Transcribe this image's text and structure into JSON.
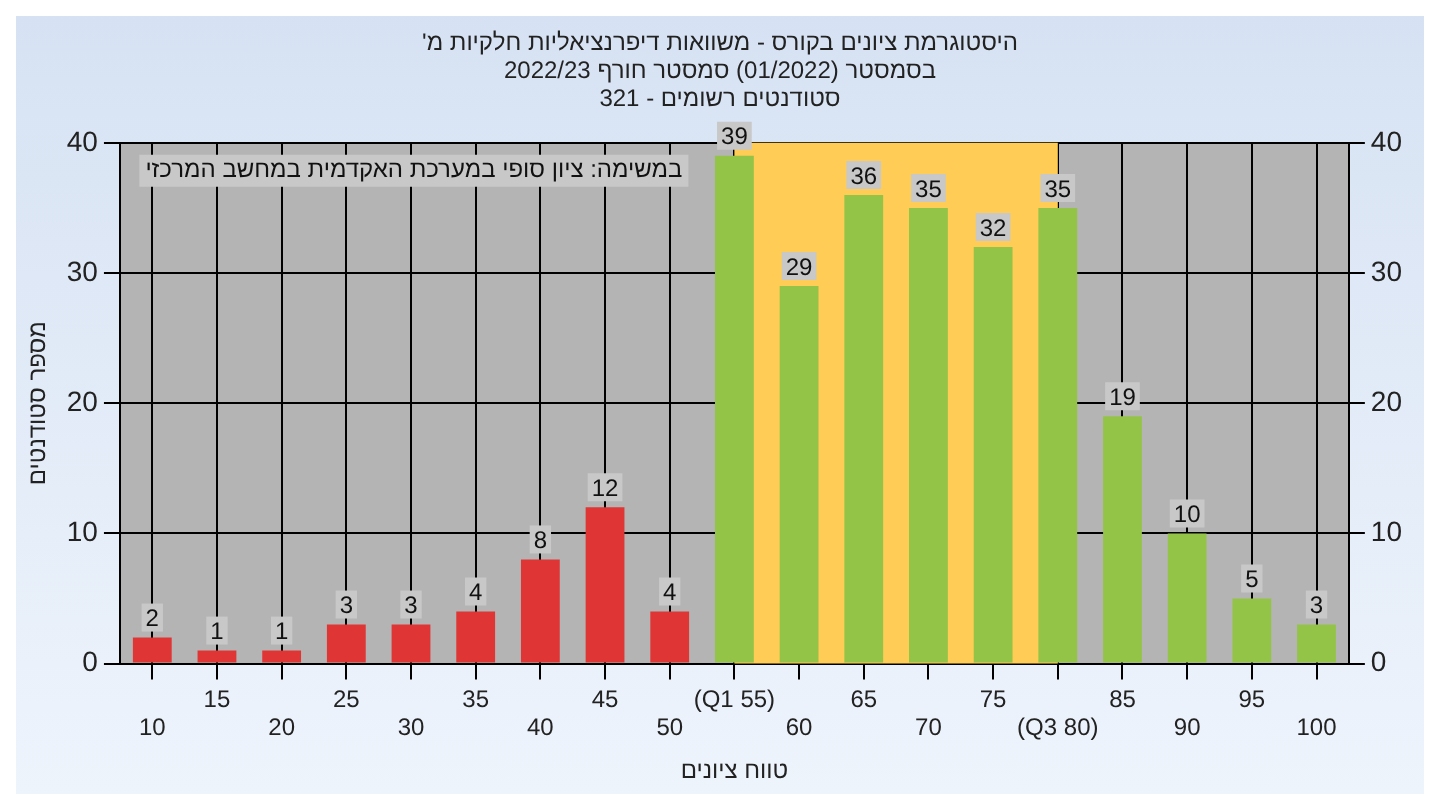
{
  "chart_data": {
    "type": "bar",
    "title": "היסטוגרמת ציונים בקורס - משוואות דיפרנציאליות חלקיות מ'",
    "subtitle": "בסמסטר (01/2022) סמסטר חורף 2022/23\nסטודנטים רשומים - 321",
    "xlabel": "טווח ציונים",
    "ylabel": "מספר סטודנטים",
    "categories": [
      "10",
      "15",
      "20",
      "25",
      "30",
      "35",
      "40",
      "45",
      "50",
      "(Q1 55)",
      "60",
      "65",
      "70",
      "75",
      "(Q3 80)",
      "85",
      "90",
      "95",
      "100"
    ],
    "values": [
      2,
      1,
      1,
      3,
      3,
      4,
      8,
      12,
      4,
      39,
      29,
      36,
      35,
      32,
      35,
      19,
      10,
      5,
      3
    ],
    "colors": [
      "#e03535",
      "#e03535",
      "#e03535",
      "#e03535",
      "#e03535",
      "#e03535",
      "#e03535",
      "#e03535",
      "#e03535",
      "#94c447",
      "#94c447",
      "#94c447",
      "#94c447",
      "#94c447",
      "#94c447",
      "#94c447",
      "#94c447",
      "#94c447",
      "#94c447"
    ],
    "ylim": [
      0,
      40
    ],
    "yticks": [
      0,
      10,
      20,
      30,
      40
    ],
    "y2lim": [
      0,
      40
    ],
    "y2ticks": [
      0,
      10,
      20,
      30,
      40
    ],
    "bands": [
      {
        "axis": "x",
        "from": "(Q1 55)",
        "to": "(Q3 80)",
        "color": "#ffcc55"
      }
    ],
    "annotations": [
      "במשימה: ציון סופי במערכת האקדמית במחשב המרכזי"
    ],
    "data_labels": true,
    "grid": true,
    "legend": false
  }
}
